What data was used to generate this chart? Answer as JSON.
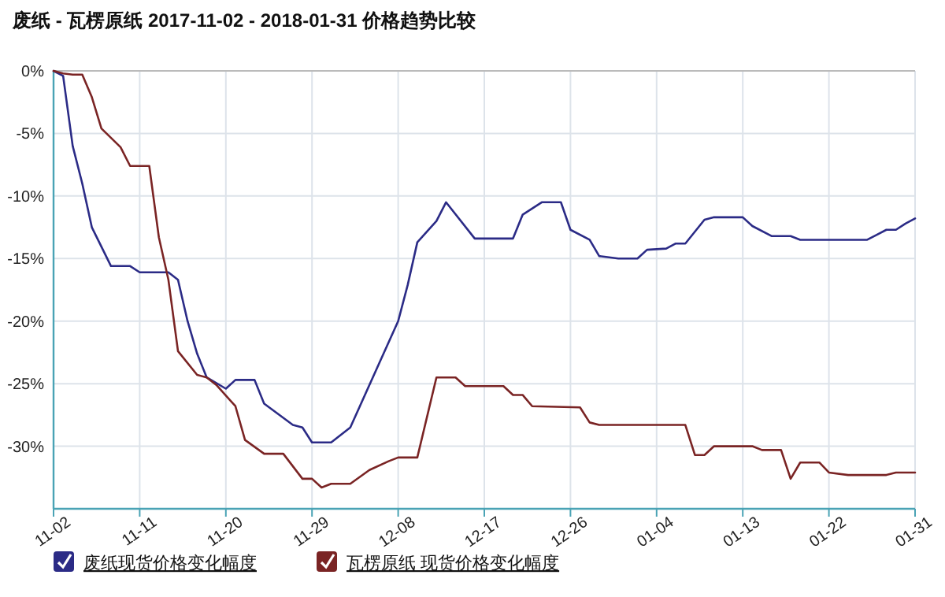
{
  "chart_data": {
    "type": "line",
    "title": "废纸 - 瓦楞原纸 2017-11-02 - 2018-01-31 价格趋势比较",
    "xlim": [
      "2017-11-02",
      "2018-01-31"
    ],
    "xticks": [
      {
        "value": "2017-11-02",
        "label": "11-02"
      },
      {
        "value": "2017-11-11",
        "label": "11-11"
      },
      {
        "value": "2017-11-20",
        "label": "11-20"
      },
      {
        "value": "2017-11-29",
        "label": "11-29"
      },
      {
        "value": "2017-12-08",
        "label": "12-08"
      },
      {
        "value": "2017-12-17",
        "label": "12-17"
      },
      {
        "value": "2017-12-26",
        "label": "12-26"
      },
      {
        "value": "2018-01-04",
        "label": "01-04"
      },
      {
        "value": "2018-01-13",
        "label": "01-13"
      },
      {
        "value": "2018-01-22",
        "label": "01-22"
      },
      {
        "value": "2018-01-31",
        "label": "01-31"
      }
    ],
    "ylim": [
      -35,
      0
    ],
    "yticks": [
      {
        "value": 0,
        "label": "0%"
      },
      {
        "value": -5,
        "label": "-5%"
      },
      {
        "value": -10,
        "label": "-10%"
      },
      {
        "value": -15,
        "label": "-15%"
      },
      {
        "value": -20,
        "label": "-20%"
      },
      {
        "value": -25,
        "label": "-25%"
      },
      {
        "value": -30,
        "label": "-30%"
      }
    ],
    "grid": true,
    "legend": "bottom",
    "marker": "none",
    "line_style": "solid",
    "series": [
      {
        "name": "废纸现货价格变化幅度",
        "color": "#2b2b86",
        "x": [
          "2017-11-02",
          "2017-11-03",
          "2017-11-04",
          "2017-11-05",
          "2017-11-06",
          "2017-11-08",
          "2017-11-10",
          "2017-11-11",
          "2017-11-14",
          "2017-11-15",
          "2017-11-16",
          "2017-11-17",
          "2017-11-18",
          "2017-11-20",
          "2017-11-21",
          "2017-11-23",
          "2017-11-24",
          "2017-11-27",
          "2017-11-28",
          "2017-11-29",
          "2017-12-01",
          "2017-12-03",
          "2017-12-04",
          "2017-12-06",
          "2017-12-08",
          "2017-12-09",
          "2017-12-10",
          "2017-12-12",
          "2017-12-13",
          "2017-12-16",
          "2017-12-20",
          "2017-12-21",
          "2017-12-23",
          "2017-12-25",
          "2017-12-26",
          "2017-12-28",
          "2017-12-29",
          "2017-12-31",
          "2018-01-02",
          "2018-01-03",
          "2018-01-05",
          "2018-01-06",
          "2018-01-07",
          "2018-01-09",
          "2018-01-10",
          "2018-01-13",
          "2018-01-14",
          "2018-01-16",
          "2018-01-18",
          "2018-01-19",
          "2018-01-26",
          "2018-01-27",
          "2018-01-28",
          "2018-01-29",
          "2018-01-30",
          "2018-01-31"
        ],
        "values": [
          0,
          -0.4,
          -6,
          -9,
          -12.5,
          -15.6,
          -15.6,
          -16.1,
          -16.1,
          -16.7,
          -20,
          -22.6,
          -24.5,
          -25.4,
          -24.7,
          -24.7,
          -26.6,
          -28.3,
          -28.5,
          -29.7,
          -29.7,
          -28.5,
          -26.8,
          -23.4,
          -20,
          -17.1,
          -13.7,
          -12,
          -10.5,
          -13.4,
          -13.4,
          -11.5,
          -10.5,
          -10.5,
          -12.7,
          -13.5,
          -14.8,
          -15,
          -15,
          -14.3,
          -14.2,
          -13.8,
          -13.8,
          -11.9,
          -11.7,
          -11.7,
          -12.4,
          -13.2,
          -13.2,
          -13.5,
          -13.5,
          -13.1,
          -12.7,
          -12.7,
          -12.2,
          -11.8
        ]
      },
      {
        "name": "瓦楞原纸 现货价格变化幅度",
        "color": "#7a2424",
        "x": [
          "2017-11-02",
          "2017-11-03",
          "2017-11-04",
          "2017-11-05",
          "2017-11-06",
          "2017-11-07",
          "2017-11-09",
          "2017-11-10",
          "2017-11-12",
          "2017-11-13",
          "2017-11-14",
          "2017-11-15",
          "2017-11-17",
          "2017-11-18",
          "2017-11-19",
          "2017-11-21",
          "2017-11-22",
          "2017-11-24",
          "2017-11-26",
          "2017-11-28",
          "2017-11-29",
          "2017-11-30",
          "2017-12-01",
          "2017-12-03",
          "2017-12-05",
          "2017-12-07",
          "2017-12-08",
          "2017-12-10",
          "2017-12-12",
          "2017-12-14",
          "2017-12-15",
          "2017-12-19",
          "2017-12-20",
          "2017-12-21",
          "2017-12-22",
          "2017-12-27",
          "2017-12-28",
          "2017-12-29",
          "2018-01-07",
          "2018-01-08",
          "2018-01-09",
          "2018-01-10",
          "2018-01-14",
          "2018-01-15",
          "2018-01-17",
          "2018-01-18",
          "2018-01-19",
          "2018-01-21",
          "2018-01-22",
          "2018-01-24",
          "2018-01-28",
          "2018-01-29",
          "2018-01-31"
        ],
        "values": [
          0,
          -0.2,
          -0.3,
          -0.3,
          -2.1,
          -4.6,
          -6.1,
          -7.6,
          -7.6,
          -13.3,
          -16.7,
          -22.4,
          -24.3,
          -24.5,
          -25.1,
          -26.8,
          -29.5,
          -30.6,
          -30.6,
          -32.6,
          -32.6,
          -33.3,
          -33,
          -33,
          -31.9,
          -31.2,
          -30.9,
          -30.9,
          -24.5,
          -24.5,
          -25.2,
          -25.2,
          -25.9,
          -25.9,
          -26.8,
          -26.9,
          -28.1,
          -28.3,
          -28.3,
          -30.7,
          -30.7,
          -30,
          -30,
          -30.3,
          -30.3,
          -32.6,
          -31.3,
          -31.3,
          -32.1,
          -32.3,
          -32.3,
          -32.1,
          -32.1
        ]
      }
    ]
  }
}
